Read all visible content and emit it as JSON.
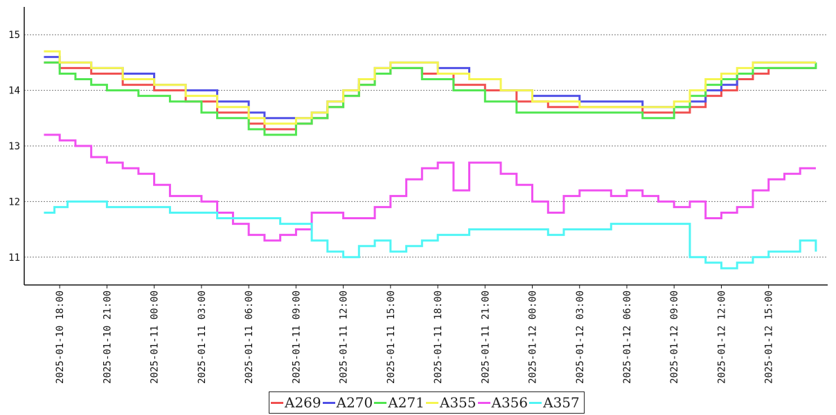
{
  "chart_data": {
    "type": "line",
    "title": "",
    "xlabel": "",
    "ylabel": "",
    "ylim": [
      10.5,
      15.5
    ],
    "xlim": [
      "2025-01-10 15:45",
      "2025-01-12 18:45"
    ],
    "yticks": [
      11,
      12,
      13,
      14,
      15
    ],
    "xticks": [
      "2025-01-10 18:00",
      "2025-01-10 21:00",
      "2025-01-11 00:00",
      "2025-01-11 03:00",
      "2025-01-11 06:00",
      "2025-01-11 09:00",
      "2025-01-11 12:00",
      "2025-01-11 15:00",
      "2025-01-11 18:00",
      "2025-01-11 21:00",
      "2025-01-12 00:00",
      "2025-01-12 03:00",
      "2025-01-12 06:00",
      "2025-01-12 09:00",
      "2025-01-12 12:00",
      "2025-01-12 15:00"
    ],
    "grid": "horizontal dotted",
    "legend_position": "bottom",
    "series": [
      {
        "name": "A269",
        "color": "#f05050",
        "x": [
          "2025-01-10 17:00",
          "2025-01-10 18:00",
          "2025-01-10 20:00",
          "2025-01-10 22:00",
          "2025-01-11 00:00",
          "2025-01-11 02:00",
          "2025-01-11 04:00",
          "2025-01-11 06:00",
          "2025-01-11 07:00",
          "2025-01-11 09:00",
          "2025-01-11 10:00",
          "2025-01-11 11:00",
          "2025-01-11 12:00",
          "2025-01-11 13:00",
          "2025-01-11 14:00",
          "2025-01-11 15:00",
          "2025-01-11 17:00",
          "2025-01-11 19:00",
          "2025-01-11 21:00",
          "2025-01-11 23:00",
          "2025-01-12 01:00",
          "2025-01-12 03:00",
          "2025-01-12 05:00",
          "2025-01-12 07:00",
          "2025-01-12 09:00",
          "2025-01-12 10:00",
          "2025-01-12 11:00",
          "2025-01-12 12:00",
          "2025-01-12 13:00",
          "2025-01-12 14:00",
          "2025-01-12 15:00",
          "2025-01-12 18:00"
        ],
        "y": [
          14.5,
          14.4,
          14.3,
          14.1,
          14.0,
          13.8,
          13.6,
          13.4,
          13.3,
          13.4,
          13.5,
          13.7,
          13.9,
          14.1,
          14.3,
          14.4,
          14.3,
          14.1,
          14.0,
          13.8,
          13.7,
          13.7,
          13.7,
          13.6,
          13.6,
          13.7,
          13.9,
          14.0,
          14.2,
          14.3,
          14.4,
          14.4
        ]
      },
      {
        "name": "A270",
        "color": "#5050e6",
        "x": [
          "2025-01-10 17:00",
          "2025-01-10 18:00",
          "2025-01-10 20:00",
          "2025-01-10 22:00",
          "2025-01-11 00:00",
          "2025-01-11 02:00",
          "2025-01-11 04:00",
          "2025-01-11 06:00",
          "2025-01-11 07:00",
          "2025-01-11 09:00",
          "2025-01-11 10:00",
          "2025-01-11 11:00",
          "2025-01-11 12:00",
          "2025-01-11 13:00",
          "2025-01-11 14:00",
          "2025-01-11 15:00",
          "2025-01-11 18:00",
          "2025-01-11 20:00",
          "2025-01-11 22:00",
          "2025-01-12 00:00",
          "2025-01-12 03:00",
          "2025-01-12 05:00",
          "2025-01-12 07:00",
          "2025-01-12 09:00",
          "2025-01-12 10:00",
          "2025-01-12 11:00",
          "2025-01-12 12:00",
          "2025-01-12 13:00",
          "2025-01-12 14:00",
          "2025-01-12 18:00"
        ],
        "y": [
          14.6,
          14.5,
          14.4,
          14.3,
          14.1,
          14.0,
          13.8,
          13.6,
          13.5,
          13.5,
          13.6,
          13.8,
          14.0,
          14.2,
          14.4,
          14.5,
          14.4,
          14.2,
          14.0,
          13.9,
          13.8,
          13.8,
          13.7,
          13.7,
          13.8,
          14.0,
          14.1,
          14.3,
          14.5,
          14.5
        ]
      },
      {
        "name": "A271",
        "color": "#50e650",
        "x": [
          "2025-01-10 17:00",
          "2025-01-10 18:00",
          "2025-01-10 19:00",
          "2025-01-10 20:00",
          "2025-01-10 21:00",
          "2025-01-10 23:00",
          "2025-01-11 01:00",
          "2025-01-11 03:00",
          "2025-01-11 04:00",
          "2025-01-11 06:00",
          "2025-01-11 07:00",
          "2025-01-11 09:00",
          "2025-01-11 10:00",
          "2025-01-11 11:00",
          "2025-01-11 12:00",
          "2025-01-11 13:00",
          "2025-01-11 14:00",
          "2025-01-11 15:00",
          "2025-01-11 17:00",
          "2025-01-11 19:00",
          "2025-01-11 21:00",
          "2025-01-11 23:00",
          "2025-01-12 03:00",
          "2025-01-12 07:00",
          "2025-01-12 09:00",
          "2025-01-12 10:00",
          "2025-01-12 11:00",
          "2025-01-12 12:00",
          "2025-01-12 13:00",
          "2025-01-12 14:00",
          "2025-01-12 18:00"
        ],
        "y": [
          14.5,
          14.3,
          14.2,
          14.1,
          14.0,
          13.9,
          13.8,
          13.6,
          13.5,
          13.3,
          13.2,
          13.4,
          13.5,
          13.7,
          13.9,
          14.1,
          14.3,
          14.4,
          14.2,
          14.0,
          13.8,
          13.6,
          13.6,
          13.5,
          13.7,
          13.9,
          14.1,
          14.2,
          14.3,
          14.4,
          14.5
        ]
      },
      {
        "name": "A355",
        "color": "#f5f550",
        "x": [
          "2025-01-10 17:00",
          "2025-01-10 18:00",
          "2025-01-10 20:00",
          "2025-01-10 22:00",
          "2025-01-11 00:00",
          "2025-01-11 02:00",
          "2025-01-11 04:00",
          "2025-01-11 06:00",
          "2025-01-11 07:00",
          "2025-01-11 09:00",
          "2025-01-11 10:00",
          "2025-01-11 11:00",
          "2025-01-11 12:00",
          "2025-01-11 13:00",
          "2025-01-11 14:00",
          "2025-01-11 15:00",
          "2025-01-11 18:00",
          "2025-01-11 20:00",
          "2025-01-11 22:00",
          "2025-01-12 00:00",
          "2025-01-12 03:00",
          "2025-01-12 06:00",
          "2025-01-12 09:00",
          "2025-01-12 10:00",
          "2025-01-12 11:00",
          "2025-01-12 12:00",
          "2025-01-12 13:00",
          "2025-01-12 14:00",
          "2025-01-12 18:00"
        ],
        "y": [
          14.7,
          14.5,
          14.4,
          14.2,
          14.1,
          13.9,
          13.7,
          13.5,
          13.4,
          13.5,
          13.6,
          13.8,
          14.0,
          14.2,
          14.4,
          14.5,
          14.3,
          14.2,
          14.0,
          13.8,
          13.7,
          13.7,
          13.8,
          14.0,
          14.2,
          14.3,
          14.4,
          14.5,
          14.5
        ]
      },
      {
        "name": "A356",
        "color": "#f050f0",
        "x": [
          "2025-01-10 17:00",
          "2025-01-10 18:00",
          "2025-01-10 19:00",
          "2025-01-10 20:00",
          "2025-01-10 21:00",
          "2025-01-10 22:00",
          "2025-01-10 23:00",
          "2025-01-11 00:00",
          "2025-01-11 01:00",
          "2025-01-11 02:00",
          "2025-01-11 03:00",
          "2025-01-11 04:00",
          "2025-01-11 05:00",
          "2025-01-11 06:00",
          "2025-01-11 07:00",
          "2025-01-11 08:00",
          "2025-01-11 09:00",
          "2025-01-11 10:00",
          "2025-01-11 11:00",
          "2025-01-11 12:00",
          "2025-01-11 13:00",
          "2025-01-11 14:00",
          "2025-01-11 15:00",
          "2025-01-11 16:00",
          "2025-01-11 17:00",
          "2025-01-11 18:00",
          "2025-01-11 19:00",
          "2025-01-11 20:00",
          "2025-01-11 21:00",
          "2025-01-11 22:00",
          "2025-01-11 23:00",
          "2025-01-12 00:00",
          "2025-01-12 01:00",
          "2025-01-12 02:00",
          "2025-01-12 03:00",
          "2025-01-12 04:00",
          "2025-01-12 05:00",
          "2025-01-12 06:00",
          "2025-01-12 07:00",
          "2025-01-12 08:00",
          "2025-01-12 09:00",
          "2025-01-12 10:00",
          "2025-01-12 11:00",
          "2025-01-12 12:00",
          "2025-01-12 13:00",
          "2025-01-12 14:00",
          "2025-01-12 15:00",
          "2025-01-12 16:00",
          "2025-01-12 17:00",
          "2025-01-12 18:00"
        ],
        "y": [
          13.2,
          13.1,
          13.0,
          12.8,
          12.7,
          12.6,
          12.5,
          12.3,
          12.1,
          12.1,
          12.0,
          11.8,
          11.6,
          11.4,
          11.3,
          11.4,
          11.5,
          11.8,
          11.8,
          11.7,
          11.7,
          11.9,
          12.1,
          12.4,
          12.6,
          12.7,
          12.2,
          12.7,
          12.7,
          12.5,
          12.3,
          12.0,
          11.8,
          12.1,
          12.2,
          12.2,
          12.1,
          12.2,
          12.1,
          12.0,
          11.9,
          12.0,
          11.7,
          11.8,
          11.9,
          12.2,
          12.4,
          12.5,
          12.6,
          12.6
        ]
      },
      {
        "name": "A357",
        "color": "#50f5f5",
        "x": [
          "2025-01-10 17:00",
          "2025-01-10 17:40",
          "2025-01-10 18:30",
          "2025-01-10 20:00",
          "2025-01-10 21:00",
          "2025-01-11 01:00",
          "2025-01-11 02:00",
          "2025-01-11 04:00",
          "2025-01-11 06:00",
          "2025-01-11 08:00",
          "2025-01-11 09:00",
          "2025-01-11 10:00",
          "2025-01-11 11:00",
          "2025-01-11 12:00",
          "2025-01-11 13:00",
          "2025-01-11 14:00",
          "2025-01-11 15:00",
          "2025-01-11 16:00",
          "2025-01-11 17:00",
          "2025-01-11 18:00",
          "2025-01-11 20:00",
          "2025-01-12 01:00",
          "2025-01-12 02:00",
          "2025-01-12 04:00",
          "2025-01-12 05:00",
          "2025-01-12 09:00",
          "2025-01-12 10:00",
          "2025-01-12 11:00",
          "2025-01-12 12:00",
          "2025-01-12 13:00",
          "2025-01-12 14:00",
          "2025-01-12 15:00",
          "2025-01-12 17:00",
          "2025-01-12 18:00"
        ],
        "y": [
          11.8,
          11.9,
          12.0,
          12.0,
          11.9,
          11.8,
          11.8,
          11.7,
          11.7,
          11.6,
          11.6,
          11.3,
          11.1,
          11.0,
          11.2,
          11.3,
          11.1,
          11.2,
          11.3,
          11.4,
          11.5,
          11.4,
          11.5,
          11.5,
          11.6,
          11.6,
          11.0,
          10.9,
          10.8,
          10.9,
          11.0,
          11.1,
          11.3,
          11.1
        ]
      }
    ]
  }
}
